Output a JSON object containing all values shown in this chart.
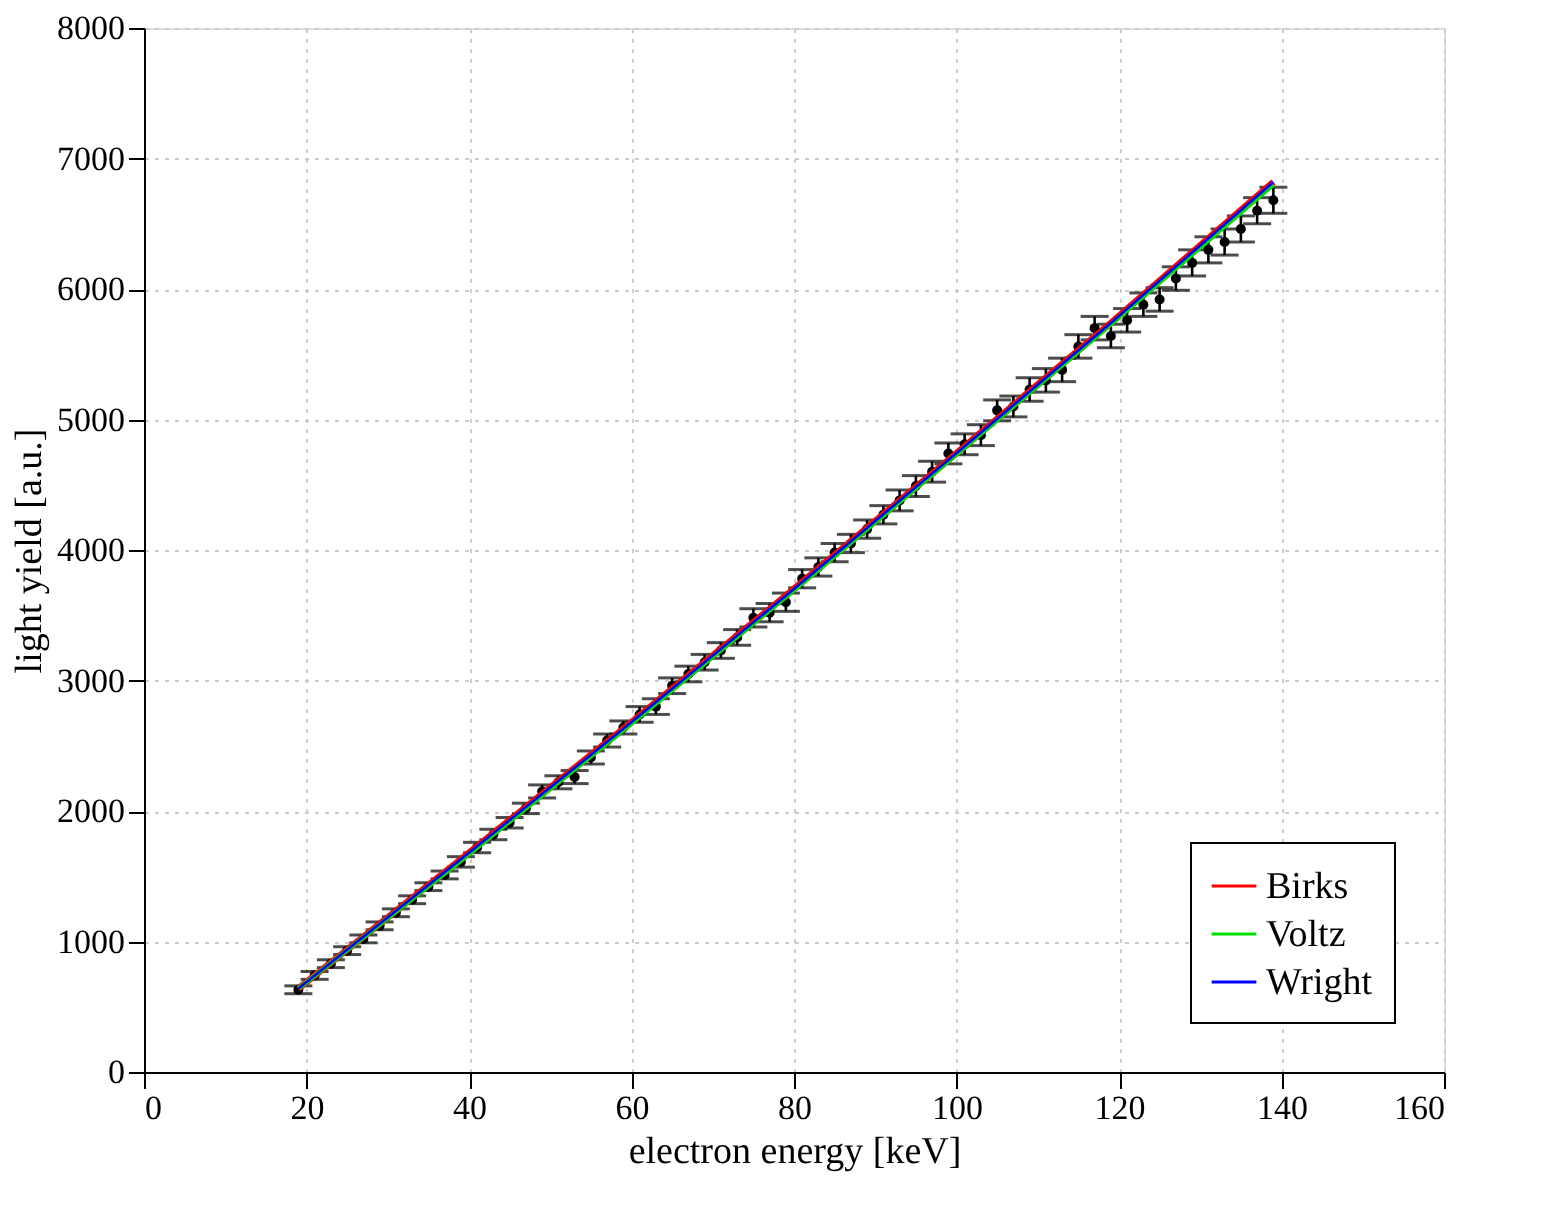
{
  "chart_data": {
    "type": "scatter",
    "xlabel": "electron energy [keV]",
    "ylabel": "light yield [a.u.]",
    "xlim": [
      0,
      160
    ],
    "xticks": [
      0,
      20,
      40,
      60,
      80,
      100,
      120,
      140,
      160
    ],
    "ylim": [
      0,
      8000
    ],
    "yticks": [
      0,
      1000,
      2000,
      3000,
      4000,
      5000,
      6000,
      7000,
      8000
    ],
    "grid": true,
    "legend": "bottom right",
    "series": [
      {
        "color": "#000000",
        "marker": "circle",
        "x": [
          19,
          21,
          23,
          25,
          27,
          29,
          31,
          33,
          35,
          37,
          39,
          41,
          43,
          45,
          47,
          49,
          51,
          53,
          55,
          57,
          59,
          61,
          63,
          65,
          67,
          69,
          71,
          73,
          75,
          77,
          79,
          81,
          83,
          85,
          87,
          89,
          91,
          93,
          95,
          97,
          99,
          101,
          103,
          105,
          107,
          109,
          111,
          113,
          115,
          117,
          119,
          121,
          123,
          125,
          127,
          129,
          131,
          133,
          135,
          137,
          139
        ],
        "values": [
          630,
          740,
          830,
          930,
          1020,
          1120,
          1220,
          1320,
          1420,
          1510,
          1610,
          1720,
          1820,
          1910,
          2020,
          2150,
          2220,
          2260,
          2410,
          2540,
          2640,
          2740,
          2800,
          2960,
          3050,
          3140,
          3230,
          3330,
          3480,
          3520,
          3600,
          3780,
          3870,
          3980,
          4050,
          4160,
          4270,
          4380,
          4490,
          4600,
          4740,
          4810,
          4880,
          5070,
          5100,
          5230,
          5300,
          5380,
          5560,
          5700,
          5640,
          5760,
          5880,
          5920,
          6080,
          6200,
          6300,
          6360,
          6460,
          6600,
          6680
        ],
        "errors": [
          30,
          30,
          30,
          30,
          30,
          30,
          30,
          30,
          30,
          30,
          40,
          40,
          40,
          40,
          40,
          50,
          50,
          50,
          50,
          50,
          50,
          60,
          60,
          60,
          60,
          60,
          60,
          60,
          70,
          70,
          70,
          70,
          70,
          70,
          70,
          70,
          70,
          80,
          80,
          80,
          80,
          80,
          80,
          80,
          80,
          90,
          90,
          90,
          90,
          90,
          90,
          90,
          90,
          90,
          90,
          100,
          100,
          100,
          100,
          100,
          100
        ]
      },
      {
        "type": "line",
        "name": "Birks",
        "color": "#ff0000",
        "x": [
          19,
          39,
          59,
          79,
          99,
          119,
          139
        ],
        "values": [
          640,
          1630,
          2630,
          3650,
          4690,
          5740,
          6820
        ]
      },
      {
        "type": "line",
        "name": "Voltz",
        "color": "#00e000",
        "x": [
          19,
          39,
          59,
          79,
          99,
          119,
          139
        ],
        "values": [
          640,
          1620,
          2620,
          3640,
          4680,
          5730,
          6800
        ]
      },
      {
        "type": "line",
        "name": "Wright",
        "color": "#0000ff",
        "x": [
          19,
          39,
          59,
          79,
          99,
          119,
          139
        ],
        "values": [
          640,
          1630,
          2630,
          3650,
          4690,
          5740,
          6820
        ]
      }
    ]
  }
}
